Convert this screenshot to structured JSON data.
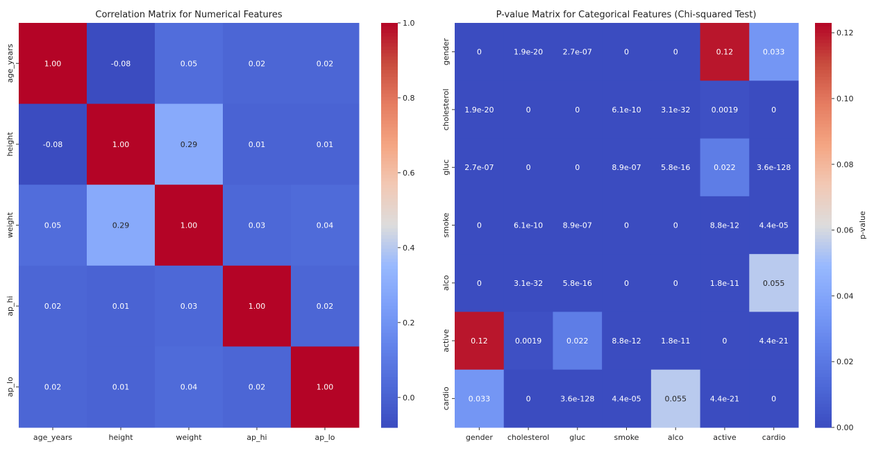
{
  "chart_data": [
    {
      "type": "heatmap",
      "title": "Correlation Matrix for Numerical Features",
      "x_categories": [
        "age_years",
        "height",
        "weight",
        "ap_hi",
        "ap_lo"
      ],
      "y_categories": [
        "age_years",
        "height",
        "weight",
        "ap_hi",
        "ap_lo"
      ],
      "values": [
        [
          1.0,
          -0.08,
          0.05,
          0.02,
          0.02
        ],
        [
          -0.08,
          1.0,
          0.29,
          0.01,
          0.01
        ],
        [
          0.05,
          0.29,
          1.0,
          0.03,
          0.04
        ],
        [
          0.02,
          0.01,
          0.03,
          1.0,
          0.02
        ],
        [
          0.02,
          0.01,
          0.04,
          0.02,
          1.0
        ]
      ],
      "cell_labels": [
        [
          "1.00",
          "-0.08",
          "0.05",
          "0.02",
          "0.02"
        ],
        [
          "-0.08",
          "1.00",
          "0.29",
          "0.01",
          "0.01"
        ],
        [
          "0.05",
          "0.29",
          "1.00",
          "0.03",
          "0.04"
        ],
        [
          "0.02",
          "0.01",
          "0.03",
          "1.00",
          "0.02"
        ],
        [
          "0.02",
          "0.01",
          "0.04",
          "0.02",
          "1.00"
        ]
      ],
      "colormap": "coolwarm",
      "colorbar": {
        "range": [
          -0.08,
          1.0
        ],
        "ticks": [
          0.0,
          0.2,
          0.4,
          0.6,
          0.8,
          1.0
        ],
        "tick_labels": [
          "0.0",
          "0.2",
          "0.4",
          "0.6",
          "0.8",
          "1.0"
        ],
        "label": ""
      }
    },
    {
      "type": "heatmap",
      "title": "P-value Matrix for Categorical Features (Chi-squared Test)",
      "x_categories": [
        "gender",
        "cholesterol",
        "gluc",
        "smoke",
        "alco",
        "active",
        "cardio"
      ],
      "y_categories": [
        "gender",
        "cholesterol",
        "gluc",
        "smoke",
        "alco",
        "active",
        "cardio"
      ],
      "cell_labels": [
        [
          "0",
          "1.9e-20",
          "2.7e-07",
          "0",
          "0",
          "0.12",
          "0.033"
        ],
        [
          "1.9e-20",
          "0",
          "0",
          "6.1e-10",
          "3.1e-32",
          "0.0019",
          "0"
        ],
        [
          "2.7e-07",
          "0",
          "0",
          "8.9e-07",
          "5.8e-16",
          "0.022",
          "3.6e-128"
        ],
        [
          "0",
          "6.1e-10",
          "8.9e-07",
          "0",
          "0",
          "8.8e-12",
          "4.4e-05"
        ],
        [
          "0",
          "3.1e-32",
          "5.8e-16",
          "0",
          "0",
          "1.8e-11",
          "0.055"
        ],
        [
          "0.12",
          "0.0019",
          "0.022",
          "8.8e-12",
          "1.8e-11",
          "0",
          "4.4e-21"
        ],
        [
          "0.033",
          "0",
          "3.6e-128",
          "4.4e-05",
          "0.055",
          "4.4e-21",
          "0"
        ]
      ],
      "colormap": "coolwarm",
      "colorbar": {
        "range": [
          0.0,
          0.123
        ],
        "ticks": [
          0.0,
          0.02,
          0.04,
          0.06,
          0.08,
          0.1,
          0.12
        ],
        "tick_labels": [
          "0.00",
          "0.02",
          "0.04",
          "0.06",
          "0.08",
          "0.10",
          "0.12"
        ],
        "label": "p-value"
      }
    }
  ]
}
